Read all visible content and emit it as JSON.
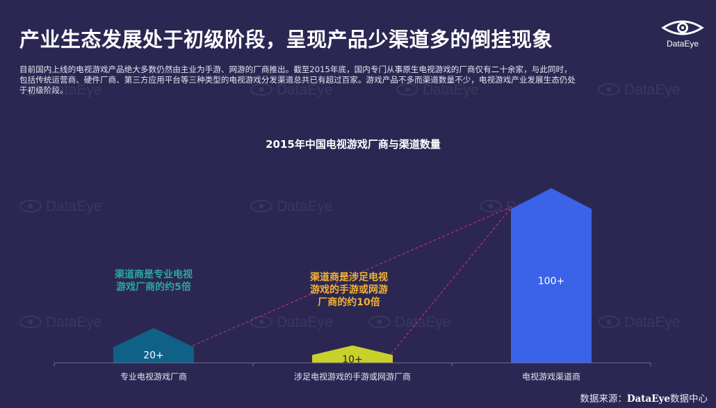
{
  "header": {
    "title": "产业生态发展处于初级阶段，呈现产品少渠道多的倒挂现象",
    "logo_text": "DataEye"
  },
  "description": [
    "目前国内上线的电视游戏产品绝大多数仍然由主业为手游、网游的厂商推出。截至2015年底，国内专门从事原生电视游戏的厂商仅有二十余家，与此同时，",
    "包括传统运营商、硬件厂商、第三方应用平台等三种类型的电视游戏分发渠道总共已有超过百家。游戏产品不多而渠道数量不少，电视游戏产业发展生态仍处",
    "于初级阶段。"
  ],
  "watermark_text": "DataEye",
  "chart_data": {
    "type": "bar",
    "title": "2015年中国电视游戏厂商与渠道数量",
    "categories": [
      "专业电视游戏厂商",
      "涉足电视游戏的手游或网游厂商",
      "电视游戏渠道商"
    ],
    "values": [
      20,
      10,
      100
    ],
    "value_labels": [
      "20+",
      "10+",
      "100+"
    ],
    "ylim": [
      0,
      110
    ],
    "colors": [
      "#0f6187",
      "#c8d12a",
      "#3a63e8"
    ],
    "annotations": [
      {
        "text_lines": [
          "渠道商是专业电视",
          "游戏厂商的约5倍"
        ],
        "color": "#2aa7a0"
      },
      {
        "text_lines": [
          "渠道商是涉足电视",
          "游戏的手游或网游",
          "厂商的约10倍"
        ],
        "color": "#f2b233"
      }
    ],
    "grid": false,
    "legend": "none"
  },
  "footer": {
    "source_label": "数据来源：",
    "source_brand": "DataEye",
    "source_suffix": "数据中心"
  }
}
